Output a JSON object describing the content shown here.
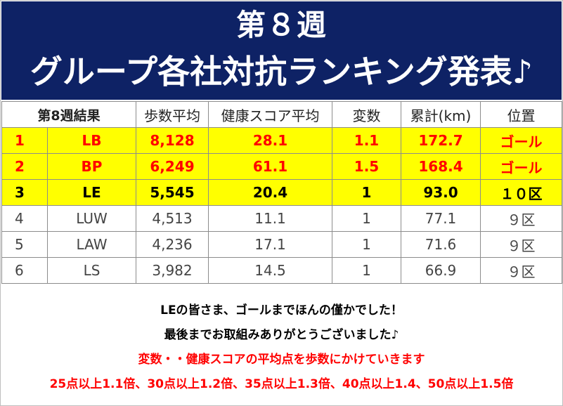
{
  "banner": {
    "title_line1": "第８週",
    "title_line2": "グループ各社対抗ランキング発表♪",
    "background": "#0e2265"
  },
  "table": {
    "headers": [
      "第8週結果",
      "歩数平均",
      "健康スコア平均",
      "変数",
      "累計(km)",
      "位置"
    ],
    "rows": [
      [
        "1",
        "LB",
        "8,128",
        "28.1",
        "1.1",
        "172.7",
        "ゴール"
      ],
      [
        "2",
        "BP",
        "6,249",
        "61.1",
        "1.5",
        "168.4",
        "ゴール"
      ],
      [
        "3",
        "LE",
        "5,545",
        "20.4",
        "1",
        "93.0",
        "１０区"
      ],
      [
        "4",
        "LUW",
        "4,513",
        "11.1",
        "1",
        "77.1",
        "９区"
      ],
      [
        "5",
        "LAW",
        "4,236",
        "17.1",
        "1",
        "71.6",
        "９区"
      ],
      [
        "6",
        "LS",
        "3,982",
        "14.5",
        "1",
        "66.9",
        "９区"
      ]
    ],
    "highlight_color": "#ffff00",
    "highlight_text_color": "#ff0000"
  },
  "notes": [
    "LEの皆さま、ゴールまでほんの僅かでした！",
    "最後までお取組みありがとうございました♪",
    "変数・・健康スコアの平均点を歩数にかけていきます",
    "25点以上1.1倍、30点以上1.2倍、35点以上1.3倍、40点以上1.4、50点以上1.5倍"
  ]
}
